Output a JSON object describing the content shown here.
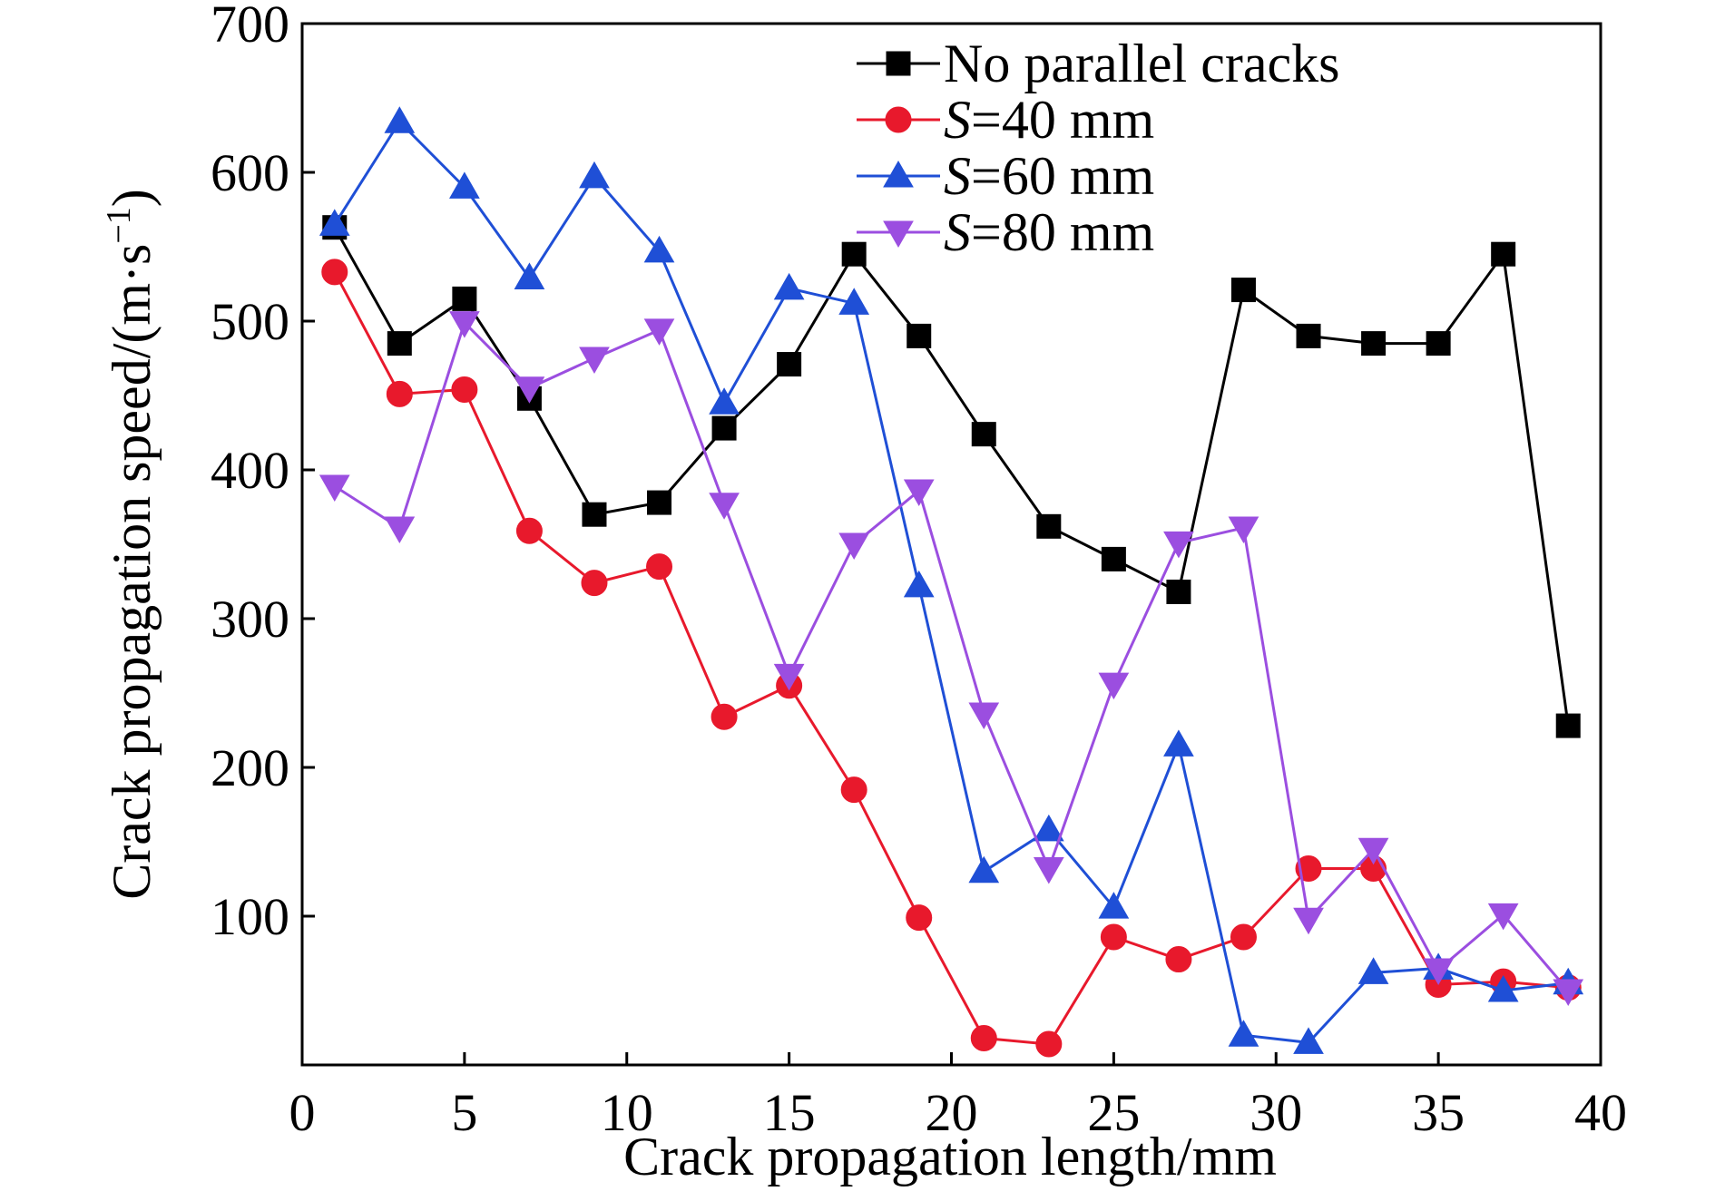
{
  "chart_data": {
    "type": "line",
    "xlabel": "Crack propagation length/mm",
    "ylabel": "Crack propagation speed/(m·s",
    "ylabel_sup": "−1",
    "ylabel_close": ")",
    "xlim": [
      0,
      40
    ],
    "ylim": [
      0,
      700
    ],
    "x_ticks": [
      0,
      5,
      10,
      15,
      20,
      25,
      30,
      35,
      40
    ],
    "y_ticks": [
      100,
      200,
      300,
      400,
      500,
      600,
      700
    ],
    "x_tick_labels": [
      "0",
      "5",
      "10",
      "15",
      "20",
      "25",
      "30",
      "35",
      "40"
    ],
    "y_tick_labels": [
      "100",
      "200",
      "300",
      "400",
      "500",
      "600",
      "700"
    ],
    "grid": false,
    "legend_position": "top-right",
    "x": [
      1,
      3,
      5,
      7,
      9,
      11,
      13,
      15,
      17,
      19,
      21,
      23,
      25,
      27,
      29,
      31,
      33,
      35,
      37,
      39
    ],
    "series": [
      {
        "name": "No parallel cracks",
        "legend_italic": "",
        "legend_text": "No parallel cracks",
        "color": "#000000",
        "marker": "square",
        "values": [
          563,
          485,
          515,
          448,
          370,
          378,
          428,
          471,
          545,
          490,
          424,
          362,
          340,
          318,
          521,
          490,
          485,
          485,
          545,
          228
        ]
      },
      {
        "name": "S=40 mm",
        "legend_italic": "S",
        "legend_text": "=40 mm",
        "color": "#e8192c",
        "marker": "circle",
        "values": [
          533,
          451,
          454,
          359,
          324,
          335,
          234,
          255,
          185,
          99,
          18,
          14,
          86,
          71,
          86,
          132,
          132,
          54,
          56,
          52
        ]
      },
      {
        "name": "S=60 mm",
        "legend_italic": "S",
        "legend_text": "=60 mm",
        "color": "#1f4fd6",
        "marker": "triangle-up",
        "values": [
          565,
          634,
          590,
          529,
          597,
          547,
          445,
          522,
          512,
          322,
          130,
          158,
          106,
          215,
          20,
          15,
          62,
          65,
          50,
          55
        ]
      },
      {
        "name": "S=80 mm",
        "legend_italic": "S",
        "legend_text": "=80 mm",
        "color": "#9b4ee0",
        "marker": "triangle-down",
        "values": [
          389,
          361,
          499,
          455,
          475,
          494,
          377,
          262,
          350,
          386,
          236,
          132,
          256,
          351,
          361,
          98,
          145,
          64,
          101,
          50
        ]
      }
    ]
  }
}
